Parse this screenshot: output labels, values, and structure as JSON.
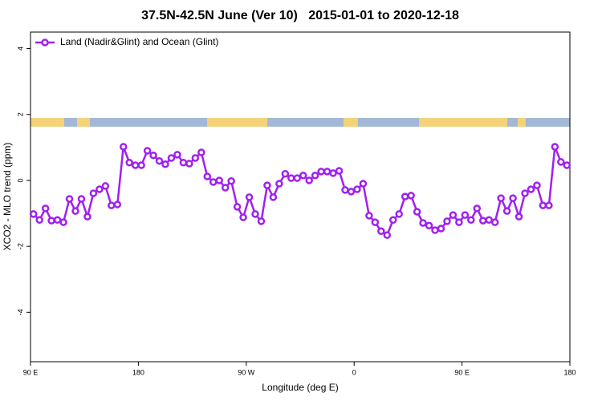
{
  "chart_data": {
    "type": "line",
    "title": "37.5N-42.5N June (Ver 10)   2015-01-01 to 2020-12-18",
    "xlabel": "Longitude (deg E)",
    "ylabel": "XCO2 - MLO trend (ppm)",
    "legend": "top-left",
    "xlim": [
      90,
      540
    ],
    "ylim": [
      -5.5,
      4.5
    ],
    "xticks": [
      {
        "value": 90,
        "label": "90 E"
      },
      {
        "value": 180,
        "label": "180"
      },
      {
        "value": 270,
        "label": "90 W"
      },
      {
        "value": 360,
        "label": "0"
      },
      {
        "value": 450,
        "label": "90 E"
      },
      {
        "value": 540,
        "label": "180"
      }
    ],
    "yticks": [
      4,
      2,
      0,
      -2,
      -4
    ],
    "x": [
      92.5,
      97.5,
      102.5,
      107.5,
      112.5,
      117.5,
      122.5,
      127.5,
      132.5,
      137.5,
      142.5,
      147.5,
      152.5,
      157.5,
      162.5,
      167.5,
      172.5,
      177.5,
      182.5,
      187.5,
      192.5,
      197.5,
      202.5,
      207.5,
      212.5,
      217.5,
      222.5,
      227.5,
      232.5,
      237.5,
      242.5,
      247.5,
      252.5,
      257.5,
      262.5,
      267.5,
      272.5,
      277.5,
      282.5,
      287.5,
      292.5,
      297.5,
      302.5,
      307.5,
      312.5,
      317.5,
      322.5,
      327.5,
      332.5,
      337.5,
      342.5,
      347.5,
      352.5,
      357.5,
      362.5,
      367.5,
      372.5,
      377.5,
      382.5,
      387.5,
      392.5,
      397.5,
      402.5,
      407.5,
      412.5,
      417.5,
      422.5,
      427.5,
      432.5,
      437.5,
      442.5,
      447.5,
      452.5,
      457.5,
      462.5,
      467.5,
      472.5,
      477.5,
      482.5,
      487.5,
      492.5,
      497.5,
      502.5,
      507.5,
      512.5,
      517.5,
      522.5,
      527.5,
      532.5,
      537.5
    ],
    "series": [
      {
        "name": "Land (Nadir&Glint) and Ocean (Glint)",
        "color": "#a020f0",
        "values": [
          -1.02,
          -1.2,
          -0.85,
          -1.22,
          -1.2,
          -1.27,
          -0.56,
          -0.93,
          -0.56,
          -1.1,
          -0.39,
          -0.27,
          -0.17,
          -0.76,
          -0.73,
          1.02,
          0.54,
          0.46,
          0.46,
          0.9,
          0.76,
          0.59,
          0.49,
          0.68,
          0.78,
          0.54,
          0.51,
          0.68,
          0.85,
          0.12,
          -0.05,
          0,
          -0.22,
          -0.02,
          -0.8,
          -1.12,
          -0.51,
          -1.02,
          -1.24,
          -0.15,
          -0.51,
          -0.1,
          0.2,
          0.07,
          0.07,
          0.15,
          0,
          0.15,
          0.27,
          0.27,
          0.22,
          0.29,
          -0.29,
          -0.34,
          -0.27,
          -0.1,
          -1.07,
          -1.27,
          -1.54,
          -1.66,
          -1.2,
          -1.02,
          -0.49,
          -0.46,
          -0.95,
          -1.29,
          -1.37,
          -1.51,
          -1.46,
          -1.24,
          -1.05,
          -1.27,
          -1.05,
          -1.2,
          -0.85,
          -1.22,
          -1.2,
          -1.27,
          -0.54,
          -0.93,
          -0.54,
          -1.1,
          -0.39,
          -0.27,
          -0.15,
          -0.76,
          -0.76,
          1.02,
          0.56,
          0.46
        ]
      }
    ]
  }
}
